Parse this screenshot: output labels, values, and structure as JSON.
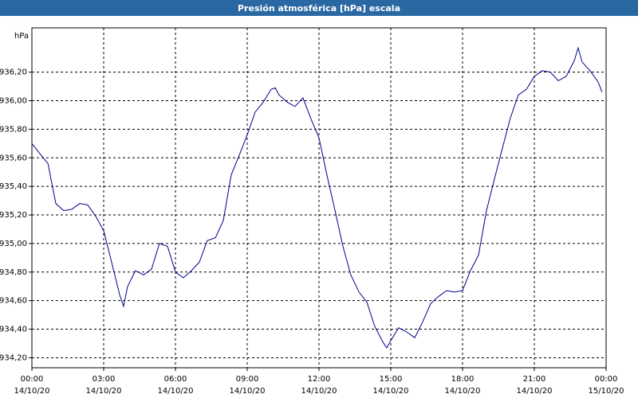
{
  "chart_data": {
    "type": "line",
    "title": "Presión atmosférica [hPa] escala",
    "ylabel": "hPa",
    "color": "#00008b",
    "grid": true,
    "xlim": [
      0,
      24
    ],
    "ylim": [
      934.13,
      936.51
    ],
    "xticks": [
      {
        "value": 0,
        "label": "00:00",
        "sublabel": "14/10/20"
      },
      {
        "value": 3,
        "label": "03:00",
        "sublabel": "14/10/20"
      },
      {
        "value": 6,
        "label": "06:00",
        "sublabel": "14/10/20"
      },
      {
        "value": 9,
        "label": "09:00",
        "sublabel": "14/10/20"
      },
      {
        "value": 12,
        "label": "12:00",
        "sublabel": "14/10/20"
      },
      {
        "value": 15,
        "label": "15:00",
        "sublabel": "14/10/20"
      },
      {
        "value": 18,
        "label": "18:00",
        "sublabel": "14/10/20"
      },
      {
        "value": 21,
        "label": "21:00",
        "sublabel": "14/10/20"
      },
      {
        "value": 24,
        "label": "00:00",
        "sublabel": "15/10/20"
      }
    ],
    "yticks": [
      {
        "value": 934.2,
        "label": "934,20"
      },
      {
        "value": 934.4,
        "label": "934,40"
      },
      {
        "value": 934.6,
        "label": "934,60"
      },
      {
        "value": 934.8,
        "label": "934,80"
      },
      {
        "value": 935.0,
        "label": "935,00"
      },
      {
        "value": 935.2,
        "label": "935,20"
      },
      {
        "value": 935.4,
        "label": "935,40"
      },
      {
        "value": 935.6,
        "label": "935,60"
      },
      {
        "value": 935.8,
        "label": "935,80"
      },
      {
        "value": 936.0,
        "label": "936,00"
      },
      {
        "value": 936.2,
        "label": "936,20"
      }
    ],
    "x": [
      0,
      0.33,
      0.67,
      1,
      1.33,
      1.67,
      2,
      2.33,
      2.67,
      3,
      3.33,
      3.67,
      3.83,
      4,
      4.33,
      4.67,
      5,
      5.33,
      5.67,
      6,
      6.33,
      6.67,
      7,
      7.33,
      7.67,
      8,
      8.33,
      8.67,
      9,
      9.33,
      9.67,
      10,
      10.17,
      10.33,
      10.67,
      11,
      11.33,
      11.67,
      12,
      12.33,
      12.67,
      13,
      13.33,
      13.67,
      14,
      14.33,
      14.67,
      14.83,
      15,
      15.33,
      15.67,
      16,
      16.33,
      16.67,
      17,
      17.33,
      17.67,
      18,
      18.33,
      18.67,
      19,
      19.33,
      19.67,
      20,
      20.33,
      20.67,
      21,
      21.33,
      21.67,
      22,
      22.33,
      22.67,
      22.83,
      23,
      23.33,
      23.67,
      23.83
    ],
    "values": [
      935.7,
      935.63,
      935.56,
      935.28,
      935.23,
      935.24,
      935.28,
      935.27,
      935.19,
      935.09,
      934.87,
      934.64,
      934.56,
      934.7,
      934.81,
      934.78,
      934.82,
      935.0,
      934.98,
      934.8,
      934.76,
      934.81,
      934.87,
      935.02,
      935.04,
      935.16,
      935.48,
      935.62,
      935.76,
      935.92,
      935.99,
      936.08,
      936.09,
      936.04,
      935.99,
      935.96,
      936.02,
      935.87,
      935.74,
      935.48,
      935.23,
      934.98,
      934.78,
      934.66,
      934.59,
      934.42,
      934.31,
      934.27,
      934.32,
      934.41,
      934.38,
      934.34,
      934.45,
      934.58,
      934.63,
      934.67,
      934.66,
      934.67,
      934.81,
      934.92,
      935.23,
      935.45,
      935.67,
      935.88,
      936.04,
      936.08,
      936.17,
      936.21,
      936.2,
      936.14,
      936.17,
      936.28,
      936.37,
      936.27,
      936.21,
      936.13,
      936.06
    ]
  }
}
